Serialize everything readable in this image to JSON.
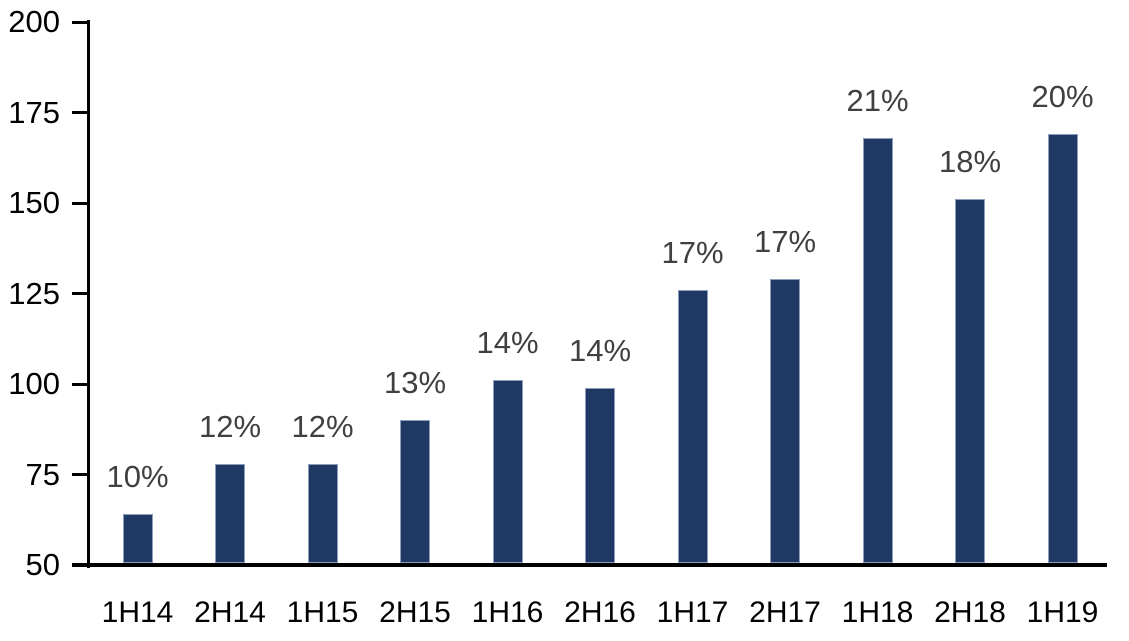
{
  "chart_data": {
    "type": "bar",
    "title": "",
    "xlabel": "",
    "ylabel": "",
    "categories": [
      "1H14",
      "2H14",
      "1H15",
      "2H15",
      "1H16",
      "2H16",
      "1H17",
      "2H17",
      "1H18",
      "2H18",
      "1H19"
    ],
    "values": [
      64,
      78,
      78,
      90,
      101,
      99,
      126,
      129,
      168,
      151,
      169
    ],
    "value_labels": [
      "10%",
      "12%",
      "12%",
      "13%",
      "14%",
      "14%",
      "17%",
      "17%",
      "21%",
      "18%",
      "20%"
    ],
    "ylim": [
      50,
      200
    ],
    "yticks": [
      50,
      75,
      100,
      125,
      150,
      175,
      200
    ],
    "grid": false,
    "legend": "none",
    "colors": {
      "bar_fill": "#1F3864",
      "bar_border": "#8E9DBB",
      "value_label": "#404040",
      "axis_text": "#000000",
      "axis_line": "#000000",
      "background": "#FFFFFF"
    }
  }
}
